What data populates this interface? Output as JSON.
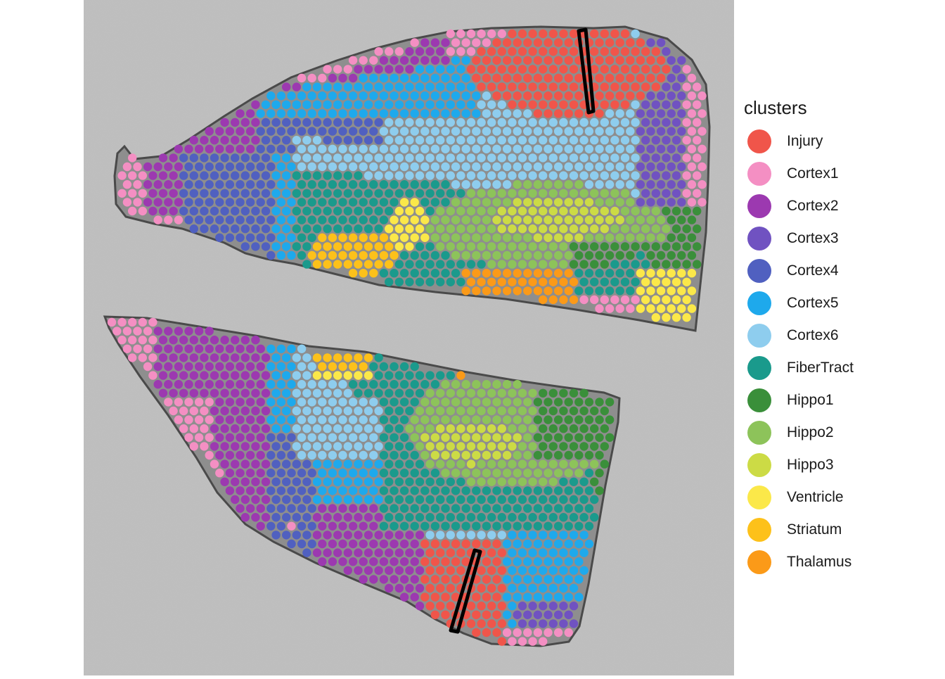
{
  "chart_data": {
    "type": "scatter",
    "title": "",
    "xlabel": "",
    "ylabel": "",
    "background": "grayscale tissue image (two brain sections)",
    "legend": {
      "title": "clusters",
      "position": "right",
      "entries": [
        {
          "name": "Injury",
          "color": "#F0554A"
        },
        {
          "name": "Cortex1",
          "color": "#F48FC3"
        },
        {
          "name": "Cortex2",
          "color": "#9C39B0"
        },
        {
          "name": "Cortex3",
          "color": "#7052C1"
        },
        {
          "name": "Cortex4",
          "color": "#5060C0"
        },
        {
          "name": "Cortex5",
          "color": "#1EA9EC"
        },
        {
          "name": "Cortex6",
          "color": "#8ECDEE"
        },
        {
          "name": "FiberTract",
          "color": "#1A9A8C"
        },
        {
          "name": "Hippo1",
          "color": "#3A8F3A"
        },
        {
          "name": "Hippo2",
          "color": "#8DC35A"
        },
        {
          "name": "Hippo3",
          "color": "#CCDB45"
        },
        {
          "name": "Ventricle",
          "color": "#FBE849"
        },
        {
          "name": "Striatum",
          "color": "#FDC11A"
        },
        {
          "name": "Thalamus",
          "color": "#FB9A18"
        }
      ]
    },
    "sections": [
      {
        "name": "upper",
        "injury_mark": "black outlined lesion track"
      },
      {
        "name": "lower",
        "injury_mark": "black outlined lesion track"
      }
    ]
  }
}
